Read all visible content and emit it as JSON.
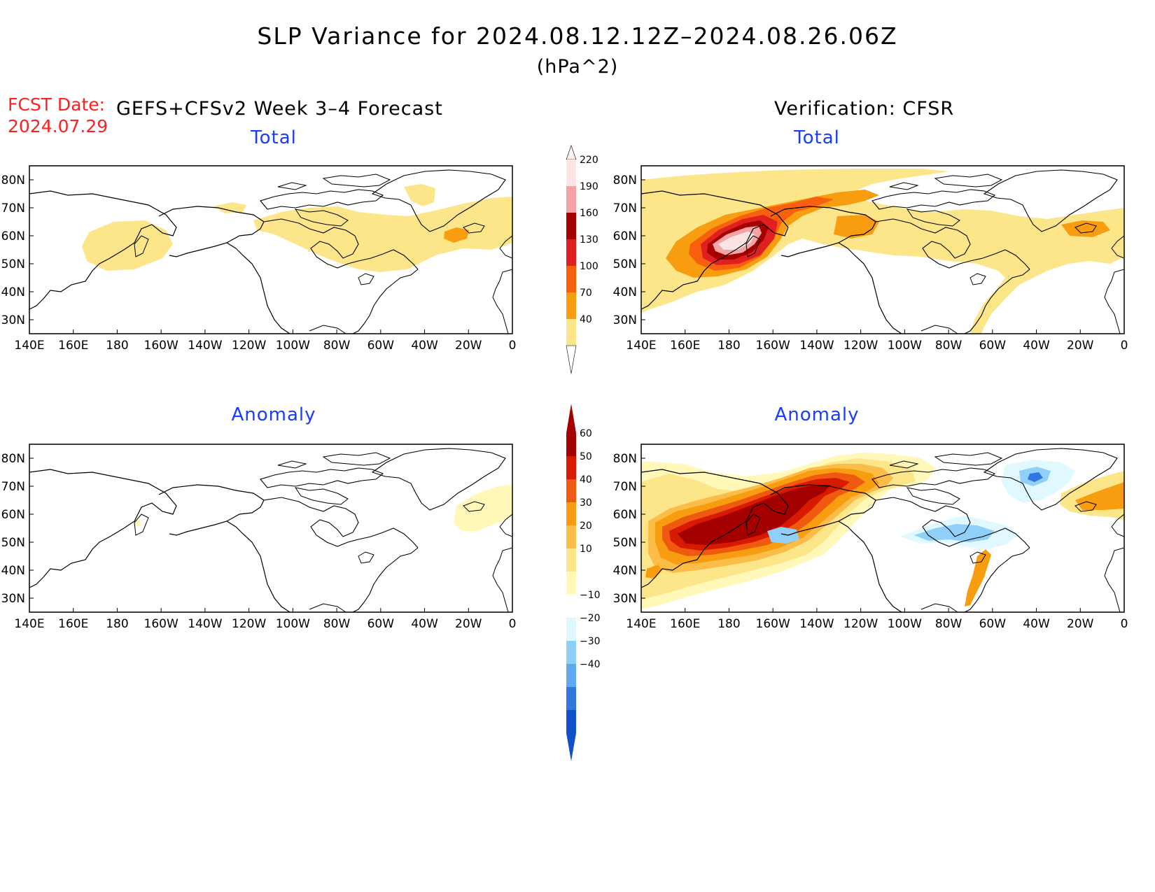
{
  "figure": {
    "title": "SLP Variance for 2024.08.12.12Z–2024.08.26.06Z",
    "units": "(hPa^2)",
    "fcst_label": "FCST Date:",
    "fcst_date": "2024.07.29",
    "left_header": "GEFS+CFSv2 Week 3–4 Forecast",
    "right_header": "Verification: CFSR"
  },
  "panels": [
    {
      "id": "forecast-total",
      "title": "Total"
    },
    {
      "id": "verification-total",
      "title": "Total"
    },
    {
      "id": "forecast-anomaly",
      "title": "Anomaly"
    },
    {
      "id": "verification-anomaly",
      "title": "Anomaly"
    }
  ],
  "axes": {
    "lon_labels": [
      "140E",
      "160E",
      "180",
      "160W",
      "140W",
      "120W",
      "100W",
      "80W",
      "60W",
      "40W",
      "20W",
      "0"
    ],
    "lat_labels": [
      "80N",
      "70N",
      "60N",
      "50N",
      "40N",
      "30N"
    ]
  },
  "colorbars": {
    "total": {
      "labels": [
        "220",
        "190",
        "160",
        "130",
        "100",
        "70",
        "40"
      ],
      "colors": [
        "#fde4e4",
        "#f4a4a4",
        "#a40000",
        "#e02020",
        "#f86010",
        "#f89c10",
        "#fde68a"
      ]
    },
    "anomaly": {
      "labels": [
        "60",
        "50",
        "40",
        "30",
        "20",
        "10",
        "−10",
        "−20",
        "−30",
        "−40"
      ],
      "colors": [
        "#a40000",
        "#d81a00",
        "#f05a10",
        "#f89c10",
        "#fcbc48",
        "#fde68a",
        "#fff8b8",
        "#ffffff",
        "#e0f8ff",
        "#90d0f8",
        "#60a8f0",
        "#3078e0",
        "#1050c8"
      ]
    }
  },
  "colors": {
    "title_blue": "#1a3cff",
    "fcst_red": "#ff2020",
    "land_outline": "#000000"
  }
}
